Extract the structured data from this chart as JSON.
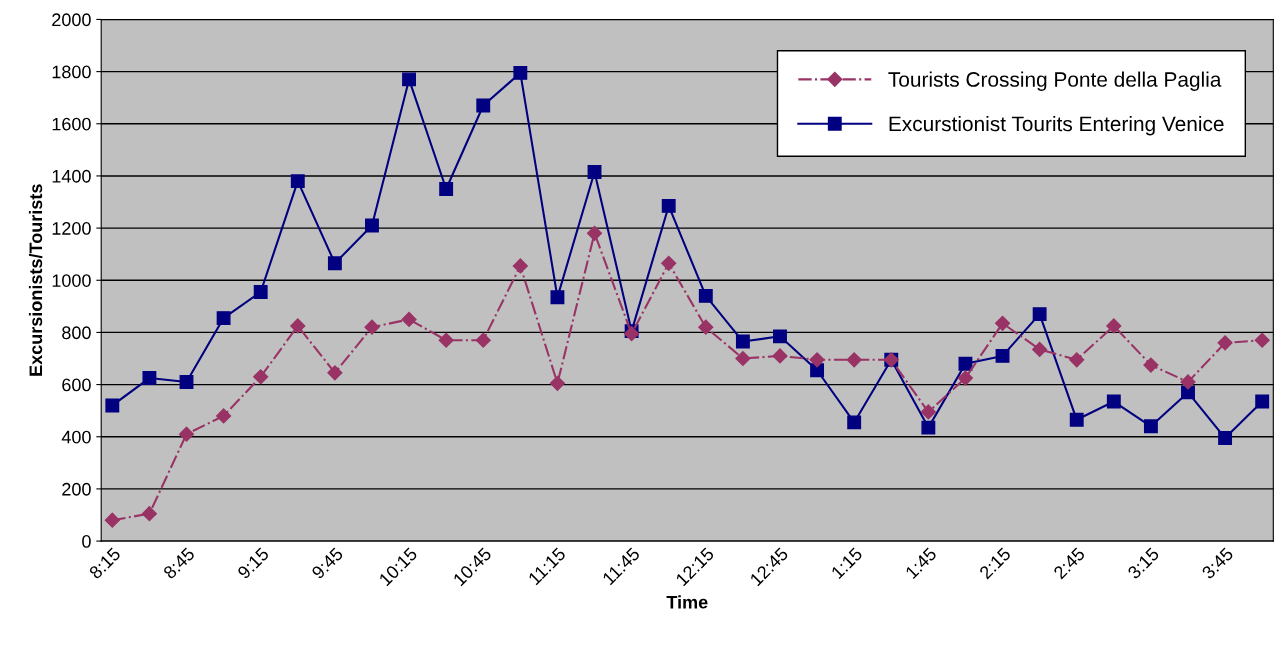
{
  "chart_data": {
    "type": "line",
    "xlabel": "Time",
    "ylabel": "Excursionists/Tourists",
    "categories": [
      "8:15",
      null,
      "8:45",
      null,
      "9:15",
      null,
      "9:45",
      null,
      "10:15",
      null,
      "10:45",
      null,
      "11:15",
      null,
      "11:45",
      null,
      "12:15",
      null,
      "12:45",
      null,
      "1:15",
      null,
      "1:45",
      null,
      "2:15",
      null,
      "2:45",
      null,
      "3:15",
      null,
      "3:45",
      null
    ],
    "series": [
      {
        "name": "Tourists Crossing Ponte della Paglia",
        "color": "#993366",
        "marker": "diamond",
        "line_style": "dashed",
        "values": [
          80,
          105,
          410,
          480,
          630,
          825,
          645,
          820,
          850,
          770,
          770,
          1055,
          605,
          1180,
          795,
          1065,
          820,
          700,
          710,
          695,
          695,
          695,
          495,
          625,
          835,
          735,
          695,
          825,
          675,
          610,
          760,
          770
        ]
      },
      {
        "name": "Excurstionist Tourits Entering Venice",
        "color": "#000080",
        "marker": "square",
        "line_style": "solid",
        "values": [
          520,
          625,
          610,
          855,
          955,
          1380,
          1065,
          1210,
          1770,
          1350,
          1670,
          1795,
          935,
          1415,
          805,
          1285,
          940,
          765,
          785,
          655,
          455,
          695,
          435,
          680,
          710,
          870,
          465,
          535,
          440,
          570,
          395,
          535
        ]
      }
    ],
    "ylim": [
      0,
      2000
    ],
    "yticks": [
      0,
      200,
      400,
      600,
      800,
      1000,
      1200,
      1400,
      1600,
      1800,
      2000
    ],
    "grid": "y",
    "legend": "top right"
  }
}
